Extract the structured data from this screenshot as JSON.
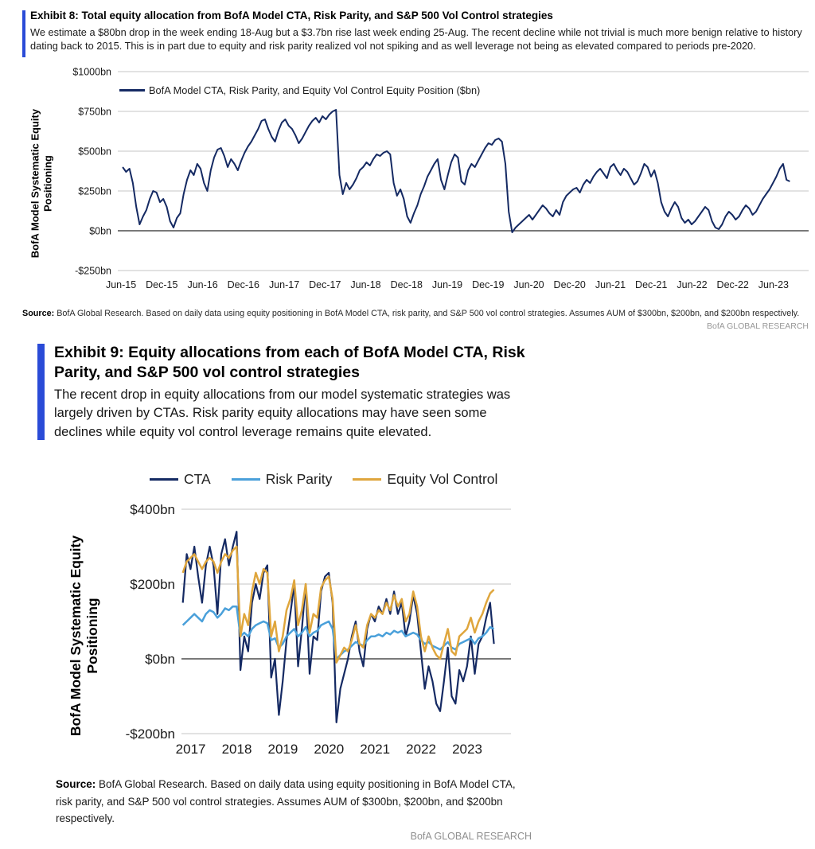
{
  "page": {
    "accent_color": "#2a4bd7",
    "exhibit8": {
      "title": "Exhibit 8: Total equity allocation from BofA Model CTA, Risk Parity, and S&P 500 Vol Control strategies",
      "subtitle": "We estimate a $80bn drop in the week ending 18-Aug but a $3.7bn rise last week ending 25-Aug.  The recent decline while not trivial is much more benign relative to history dating back to 2015.  This is in part due to equity and risk parity realized vol not spiking and as well leverage not being as elevated compared to periods pre-2020.",
      "y_axis_label_line1": "BofA Model Systematic Equity",
      "y_axis_label_line2": "Positioning",
      "source_label": "Source:",
      "source_text": " BofA Global Research.  Based on daily data using equity positioning  in BofA Model CTA, risk parity, and S&P 500 vol control  strategies.  Assumes AUM of $300bn,  $200bn, and $200bn  respectively.",
      "brand": "BofA GLOBAL RESEARCH"
    },
    "exhibit9": {
      "title": "Exhibit 9: Equity allocations from each of BofA Model CTA, Risk Parity, and S&P 500 vol control strategies",
      "subtitle": "The recent drop in equity allocations from our model systematic strategies was largely driven by CTAs.  Risk parity equity allocations may have seen some declines while equity vol control leverage remains quite elevated.",
      "y_axis_label_line1": "BofA Model Systematic Equity",
      "y_axis_label_line2": "Positioning",
      "source_label": "Source:",
      "source_text": " BofA Global Research.  Based on daily data using equity positioning  in BofA Model CTA, risk parity, and S&P 500 vol control strategies.  Assumes AUM of $300bn,  $200bn, and $200bn respectively.",
      "brand": "BofA GLOBAL RESEARCH"
    }
  },
  "chart_data": [
    {
      "type": "line",
      "title": "BofA Model Systematic Equity Positioning (total)",
      "ylabel": "BofA Model Systematic Equity Positioning",
      "xlabel": "",
      "grid": true,
      "legend_position": "top-left-inside",
      "ylim": [
        -250,
        1000
      ],
      "xlim": [
        2015.38,
        2023.85
      ],
      "y_ticks": [
        {
          "value": 1000,
          "label": "$1000bn"
        },
        {
          "value": 750,
          "label": "$750bn"
        },
        {
          "value": 500,
          "label": "$500bn"
        },
        {
          "value": 250,
          "label": "$250bn"
        },
        {
          "value": 0,
          "label": "$0bn"
        },
        {
          "value": -250,
          "label": "-$250bn"
        }
      ],
      "x_ticks": [
        {
          "value": 2015.42,
          "label": "Jun-15"
        },
        {
          "value": 2015.92,
          "label": "Dec-15"
        },
        {
          "value": 2016.42,
          "label": "Jun-16"
        },
        {
          "value": 2016.92,
          "label": "Dec-16"
        },
        {
          "value": 2017.42,
          "label": "Jun-17"
        },
        {
          "value": 2017.92,
          "label": "Dec-17"
        },
        {
          "value": 2018.42,
          "label": "Jun-18"
        },
        {
          "value": 2018.92,
          "label": "Dec-18"
        },
        {
          "value": 2019.42,
          "label": "Jun-19"
        },
        {
          "value": 2019.92,
          "label": "Dec-19"
        },
        {
          "value": 2020.42,
          "label": "Jun-20"
        },
        {
          "value": 2020.92,
          "label": "Dec-20"
        },
        {
          "value": 2021.42,
          "label": "Jun-21"
        },
        {
          "value": 2021.92,
          "label": "Dec-21"
        },
        {
          "value": 2022.42,
          "label": "Jun-22"
        },
        {
          "value": 2022.92,
          "label": "Dec-22"
        },
        {
          "value": 2023.42,
          "label": "Jun-23"
        }
      ],
      "series": [
        {
          "name": "BofA Model CTA, Risk Parity, and Equity Vol Control Equity Position ($bn)",
          "color": "#152a63",
          "width": 2,
          "x_start": 2015.44,
          "x_end": 2023.62,
          "values": [
            400,
            370,
            390,
            300,
            150,
            40,
            90,
            130,
            200,
            250,
            240,
            180,
            200,
            150,
            60,
            20,
            80,
            110,
            230,
            320,
            380,
            350,
            420,
            390,
            300,
            250,
            380,
            460,
            510,
            520,
            470,
            400,
            450,
            420,
            380,
            440,
            490,
            530,
            560,
            600,
            640,
            690,
            700,
            640,
            590,
            560,
            630,
            680,
            700,
            660,
            640,
            600,
            550,
            580,
            620,
            660,
            690,
            710,
            680,
            720,
            700,
            730,
            750,
            760,
            350,
            230,
            300,
            260,
            290,
            330,
            380,
            400,
            430,
            410,
            450,
            480,
            470,
            490,
            500,
            480,
            300,
            220,
            260,
            200,
            90,
            50,
            110,
            160,
            230,
            280,
            340,
            380,
            420,
            450,
            320,
            260,
            350,
            430,
            480,
            460,
            310,
            290,
            380,
            420,
            400,
            440,
            480,
            520,
            550,
            540,
            570,
            580,
            560,
            420,
            120,
            -10,
            20,
            40,
            60,
            80,
            100,
            70,
            100,
            130,
            160,
            140,
            110,
            90,
            130,
            100,
            180,
            220,
            240,
            260,
            270,
            240,
            290,
            320,
            300,
            340,
            370,
            390,
            360,
            330,
            400,
            420,
            380,
            350,
            390,
            370,
            330,
            290,
            310,
            360,
            420,
            400,
            340,
            380,
            300,
            180,
            120,
            90,
            140,
            180,
            150,
            80,
            50,
            70,
            40,
            60,
            90,
            120,
            150,
            130,
            60,
            20,
            10,
            40,
            90,
            120,
            100,
            70,
            90,
            130,
            160,
            140,
            100,
            120,
            160,
            200,
            230,
            260,
            300,
            340,
            390,
            420,
            320,
            310
          ]
        }
      ]
    },
    {
      "type": "line",
      "title": "Equity allocations by strategy",
      "ylabel": "BofA Model Systematic Equity Positioning",
      "xlabel": "",
      "grid": true,
      "legend_position": "top",
      "ylim": [
        -200,
        400
      ],
      "xlim": [
        2016.8,
        2023.95
      ],
      "y_ticks": [
        {
          "value": 400,
          "label": "$400bn"
        },
        {
          "value": 200,
          "label": "$200bn"
        },
        {
          "value": 0,
          "label": "$0bn"
        },
        {
          "value": -200,
          "label": "-$200bn"
        }
      ],
      "x_ticks": [
        {
          "value": 2017,
          "label": "2017"
        },
        {
          "value": 2018,
          "label": "2018"
        },
        {
          "value": 2019,
          "label": "2019"
        },
        {
          "value": 2020,
          "label": "2020"
        },
        {
          "value": 2021,
          "label": "2021"
        },
        {
          "value": 2022,
          "label": "2022"
        },
        {
          "value": 2023,
          "label": "2023"
        }
      ],
      "series": [
        {
          "name": "CTA",
          "color": "#152a63",
          "width": 2.2,
          "x_start": 2016.83,
          "x_end": 2023.58,
          "values": [
            150,
            280,
            240,
            300,
            220,
            150,
            250,
            300,
            250,
            120,
            280,
            320,
            250,
            300,
            340,
            -30,
            60,
            20,
            150,
            200,
            160,
            230,
            250,
            -50,
            0,
            -150,
            -60,
            50,
            120,
            200,
            -20,
            80,
            200,
            -40,
            60,
            50,
            180,
            220,
            230,
            150,
            -170,
            -80,
            -40,
            0,
            60,
            100,
            20,
            -20,
            80,
            120,
            100,
            140,
            120,
            160,
            120,
            180,
            120,
            150,
            60,
            100,
            170,
            120,
            20,
            -80,
            -20,
            -60,
            -120,
            -140,
            -60,
            30,
            -100,
            -120,
            -30,
            -60,
            -20,
            60,
            -40,
            40,
            60,
            110,
            150,
            40
          ]
        },
        {
          "name": "Risk Parity",
          "color": "#4aa0da",
          "width": 2.5,
          "x_start": 2016.83,
          "x_end": 2023.58,
          "values": [
            90,
            100,
            110,
            120,
            110,
            100,
            120,
            130,
            125,
            110,
            120,
            135,
            130,
            140,
            140,
            60,
            70,
            60,
            80,
            90,
            95,
            100,
            95,
            50,
            55,
            30,
            40,
            60,
            70,
            80,
            60,
            70,
            85,
            60,
            70,
            75,
            90,
            95,
            100,
            80,
            0,
            10,
            20,
            25,
            35,
            45,
            40,
            35,
            50,
            60,
            60,
            65,
            60,
            70,
            65,
            75,
            70,
            75,
            60,
            65,
            70,
            65,
            50,
            40,
            45,
            35,
            30,
            25,
            35,
            45,
            30,
            25,
            40,
            45,
            50,
            55,
            40,
            55,
            60,
            70,
            85,
            80
          ]
        },
        {
          "name": "Equity Vol Control",
          "color": "#dfa63d",
          "width": 2.5,
          "x_start": 2016.83,
          "x_end": 2023.58,
          "values": [
            230,
            260,
            270,
            280,
            260,
            240,
            260,
            270,
            260,
            230,
            260,
            280,
            270,
            290,
            300,
            60,
            120,
            90,
            180,
            230,
            200,
            240,
            230,
            60,
            100,
            20,
            60,
            130,
            160,
            210,
            90,
            130,
            200,
            70,
            120,
            110,
            190,
            210,
            220,
            160,
            -10,
            10,
            30,
            20,
            50,
            90,
            40,
            30,
            90,
            120,
            110,
            130,
            120,
            150,
            130,
            170,
            140,
            160,
            100,
            120,
            180,
            140,
            60,
            20,
            60,
            30,
            10,
            0,
            40,
            80,
            20,
            10,
            60,
            70,
            80,
            110,
            70,
            100,
            120,
            150,
            175,
            185
          ]
        }
      ]
    }
  ]
}
